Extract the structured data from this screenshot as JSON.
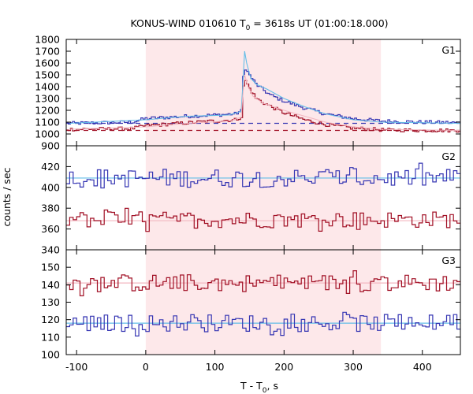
{
  "chart_data": {
    "type": "line",
    "title_main": "KONUS-WIND 010610 T",
    "title_sub": "0",
    "title_rest": " = 3618s UT (01:00:18.000)",
    "xlabel_main": "T - T",
    "xlabel_sub": "0",
    "xlabel_rest": ", s",
    "ylabel": "counts / sec",
    "xlim": [
      -115,
      455
    ],
    "x_ticks": [
      "-100",
      "0",
      "100",
      "200",
      "300",
      "400"
    ],
    "x_tick_values": [
      -100,
      0,
      100,
      200,
      300,
      400
    ],
    "shaded_interval": [
      0,
      340
    ],
    "grid": false,
    "colors": {
      "blue": "#3636b3",
      "red": "#a10f24",
      "cyan": "#63bde8",
      "pink": "#f3b7c1",
      "shade": "#fde8ea"
    },
    "panels": [
      {
        "name": "G1",
        "ylim": [
          900,
          1800
        ],
        "y_ticks": [
          "900",
          "1000",
          "1100",
          "1200",
          "1300",
          "1400",
          "1500",
          "1600",
          "1700",
          "1800"
        ],
        "y_tick_values": [
          900,
          1000,
          1100,
          1200,
          1300,
          1400,
          1500,
          1600,
          1700,
          1800
        ],
        "dashed_levels": [
          {
            "color": "blue",
            "value": 1090
          },
          {
            "color": "red",
            "value": 1030
          }
        ],
        "series": [
          {
            "color": "blue",
            "points": [
              [
                -110,
                1090
              ],
              [
                -20,
                1100
              ],
              [
                0,
                1130
              ],
              [
                60,
                1150
              ],
              [
                100,
                1160
              ],
              [
                130,
                1170
              ],
              [
                140,
                1200
              ],
              [
                142,
                1580
              ],
              [
                150,
                1500
              ],
              [
                160,
                1420
              ],
              [
                180,
                1330
              ],
              [
                200,
                1280
              ],
              [
                230,
                1220
              ],
              [
                260,
                1170
              ],
              [
                300,
                1130
              ],
              [
                340,
                1110
              ],
              [
                400,
                1100
              ],
              [
                455,
                1095
              ]
            ]
          },
          {
            "color": "red",
            "points": [
              [
                -110,
                1040
              ],
              [
                -20,
                1045
              ],
              [
                0,
                1070
              ],
              [
                50,
                1090
              ],
              [
                100,
                1110
              ],
              [
                130,
                1120
              ],
              [
                140,
                1150
              ],
              [
                142,
                1480
              ],
              [
                150,
                1390
              ],
              [
                160,
                1300
              ],
              [
                175,
                1250
              ],
              [
                200,
                1180
              ],
              [
                230,
                1120
              ],
              [
                260,
                1080
              ],
              [
                300,
                1050
              ],
              [
                340,
                1035
              ],
              [
                400,
                1030
              ],
              [
                455,
                1030
              ]
            ]
          },
          {
            "color": "cyan",
            "points": [
              [
                -110,
                1090
              ],
              [
                0,
                1120
              ],
              [
                60,
                1150
              ],
              [
                120,
                1160
              ],
              [
                138,
                1190
              ],
              [
                140,
                1380
              ],
              [
                143,
                1700
              ],
              [
                146,
                1600
              ],
              [
                152,
                1470
              ],
              [
                160,
                1420
              ],
              [
                175,
                1380
              ],
              [
                200,
                1300
              ],
              [
                230,
                1230
              ],
              [
                260,
                1170
              ],
              [
                300,
                1120
              ],
              [
                340,
                1100
              ],
              [
                455,
                1090
              ]
            ]
          },
          {
            "color": "pink",
            "points": [
              [
                -110,
                1040
              ],
              [
                0,
                1060
              ],
              [
                60,
                1090
              ],
              [
                120,
                1110
              ],
              [
                138,
                1140
              ],
              [
                140,
                1300
              ],
              [
                143,
                1500
              ],
              [
                148,
                1400
              ],
              [
                155,
                1320
              ],
              [
                170,
                1260
              ],
              [
                200,
                1200
              ],
              [
                230,
                1150
              ],
              [
                260,
                1100
              ],
              [
                300,
                1060
              ],
              [
                340,
                1040
              ],
              [
                455,
                1030
              ]
            ]
          }
        ]
      },
      {
        "name": "G2",
        "ylim": [
          340,
          440
        ],
        "y_ticks": [
          "340",
          "360",
          "380",
          "400",
          "420"
        ],
        "y_tick_values": [
          340,
          360,
          380,
          400,
          420
        ],
        "fit_levels": [
          {
            "color": "cyan",
            "value": 409
          },
          {
            "color": "pink",
            "value": 368
          }
        ],
        "series": [
          {
            "color": "blue",
            "mean": 409,
            "amp": 9
          },
          {
            "color": "red",
            "mean": 369,
            "amp": 8
          }
        ]
      },
      {
        "name": "G3",
        "ylim": [
          100,
          160
        ],
        "y_ticks": [
          "100",
          "110",
          "120",
          "130",
          "140",
          "150"
        ],
        "y_tick_values": [
          100,
          110,
          120,
          130,
          140,
          150
        ],
        "fit_levels": [
          {
            "color": "pink",
            "value": 141
          },
          {
            "color": "cyan",
            "value": 118
          }
        ],
        "series": [
          {
            "color": "red",
            "mean": 141,
            "amp": 5
          },
          {
            "color": "blue",
            "mean": 118,
            "amp": 5
          }
        ]
      }
    ]
  }
}
